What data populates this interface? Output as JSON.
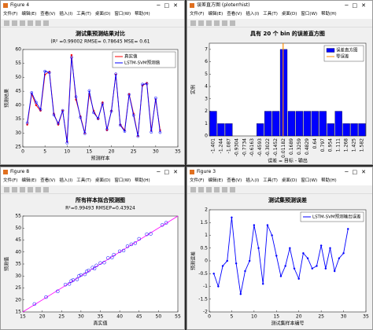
{
  "menu": [
    "文件(F)",
    "编辑(E)",
    "查看(V)",
    "插入(I)",
    "工具(T)",
    "桌面(D)",
    "窗口(W)",
    "帮助(H)"
  ],
  "windows": [
    {
      "title": "Figure 4"
    },
    {
      "title": "误差直方图 (ploterrhist)"
    },
    {
      "title": "Figure 8"
    },
    {
      "title": "Figure 3"
    }
  ],
  "chart_data": [
    {
      "type": "line",
      "title": "测试集预测结果对比",
      "subtitle": "(R² =0.99002 RMSE= 0.78645 MSE= 0.61",
      "xlabel": "预测样本",
      "ylabel": "预测结果",
      "x": [
        1,
        2,
        3,
        4,
        5,
        6,
        7,
        8,
        9,
        10,
        11,
        12,
        13,
        14,
        15,
        16,
        17,
        18,
        19,
        20,
        21,
        22,
        23,
        24,
        25,
        26,
        27,
        28,
        29,
        30,
        31
      ],
      "series": [
        {
          "name": "真实值",
          "color": "#ff0000",
          "marker": "*",
          "values": [
            33,
            44,
            40,
            38,
            51,
            52,
            37,
            33,
            38,
            27,
            58,
            42,
            36,
            30,
            44,
            38,
            35,
            41,
            31,
            38,
            51,
            33,
            31,
            44,
            37,
            29,
            47,
            48,
            31,
            42,
            31
          ]
        },
        {
          "name": "LSTM-SVM预测值",
          "color": "#0000ff",
          "marker": "o",
          "values": [
            33.6,
            44.5,
            41,
            38.4,
            52.2,
            51.7,
            36.5,
            33.4,
            38.1,
            26.4,
            57.2,
            43,
            35.6,
            29.8,
            45.2,
            37.3,
            35.2,
            40.6,
            31.3,
            37.8,
            51.2,
            32.8,
            30.6,
            43.8,
            36.4,
            28.8,
            47.5,
            47.7,
            30.3,
            42.6,
            30.2
          ]
        }
      ],
      "xlim": [
        0,
        35
      ],
      "xticks": [
        0,
        5,
        10,
        15,
        20,
        25,
        30,
        35
      ],
      "ylim": [
        25,
        60
      ],
      "yticks": [
        25,
        30,
        35,
        40,
        45,
        50,
        55,
        60
      ],
      "legend": "northeast"
    },
    {
      "type": "bar",
      "title": "具有 20 个 bin 的误差直方图",
      "xlabel": "误差 = 目标 - 输出",
      "ylabel": "实例",
      "categories": [
        "-1.401",
        "-1.244",
        "-1.087",
        "-0.9304",
        "-0.7734",
        "-0.6163",
        "-0.4593",
        "-0.3022",
        "-0.1452",
        "0.01182",
        "0.1689",
        "0.3259",
        "0.4829",
        "0.64",
        "0.797",
        "0.954",
        "1.111",
        "1.268",
        "1.425",
        "1.582"
      ],
      "series": [
        {
          "name": "误差直方图",
          "color": "#0000ff",
          "values": [
            2,
            1,
            1,
            0,
            0,
            0,
            1,
            2,
            2,
            7,
            2,
            2,
            2,
            2,
            2,
            1,
            2,
            1,
            1,
            1
          ]
        },
        {
          "name": "零误差",
          "color": "#ff8c00",
          "x": 0
        }
      ],
      "ylim": [
        0,
        7.5
      ],
      "yticks": [
        0,
        1,
        2,
        3,
        4,
        5,
        6,
        7
      ],
      "legend": "northeast"
    },
    {
      "type": "scatter",
      "title": "所有样本拟合预测图",
      "subtitle": "R²=0.99493  RMSEP=0.43924",
      "xlabel": "真实值",
      "ylabel": "预测值",
      "x": [
        18,
        21,
        24,
        26,
        27,
        27.5,
        28,
        29,
        29.5,
        30,
        31,
        31.5,
        32,
        33,
        33.5,
        34,
        35,
        36,
        37,
        38,
        38.5,
        40,
        41,
        42,
        43,
        44,
        45,
        47,
        48,
        51,
        52
      ],
      "values": [
        18.3,
        21.2,
        23.6,
        26.4,
        26.7,
        27.9,
        28.3,
        28.6,
        30,
        30.4,
        30.7,
        31.9,
        32.3,
        33.5,
        33.1,
        34.4,
        35.4,
        35.6,
        37.5,
        37.7,
        38.9,
        40.3,
        40.6,
        42.4,
        43.2,
        43.7,
        45.5,
        47.4,
        47.6,
        51.3,
        52.2
      ],
      "color": "#0000ff",
      "fit_color": "#ff00ff",
      "xlim": [
        15,
        55
      ],
      "xticks": [
        15,
        20,
        25,
        30,
        35,
        40,
        45,
        50,
        55
      ],
      "ylim": [
        15,
        55
      ],
      "yticks": [
        15,
        20,
        25,
        30,
        35,
        40,
        45,
        50,
        55
      ]
    },
    {
      "type": "line",
      "title": "测试集预测误差",
      "xlabel": "测试集样本编号",
      "ylabel": "预测误差",
      "x": [
        1,
        2,
        3,
        4,
        5,
        6,
        7,
        8,
        9,
        10,
        11,
        12,
        13,
        14,
        15,
        16,
        17,
        18,
        19,
        20,
        21,
        22,
        23,
        24,
        25,
        26,
        27,
        28,
        29,
        30,
        31
      ],
      "series": [
        {
          "name": "LSTM-SVM预测输出误差",
          "color": "#0000ff",
          "marker": "*",
          "values": [
            -0.5,
            -1.0,
            -0.2,
            0,
            1.7,
            -0.1,
            -1.3,
            -0.4,
            0,
            1.4,
            0.5,
            -0.9,
            1.4,
            1.0,
            0.2,
            -0.6,
            -0.2,
            0.5,
            -0.3,
            -0.7,
            0.3,
            0.1,
            -0.3,
            -0.2,
            0.6,
            -0.3,
            0.5,
            -0.4,
            0.1,
            0.3,
            1.25
          ]
        }
      ],
      "xlim": [
        0,
        35
      ],
      "xticks": [
        0,
        5,
        10,
        15,
        20,
        25,
        30,
        35
      ],
      "ylim": [
        -2,
        2
      ],
      "yticks": [
        -2,
        -1.5,
        -1,
        -0.5,
        0,
        0.5,
        1,
        1.5,
        2
      ],
      "legend": "northeast"
    }
  ]
}
